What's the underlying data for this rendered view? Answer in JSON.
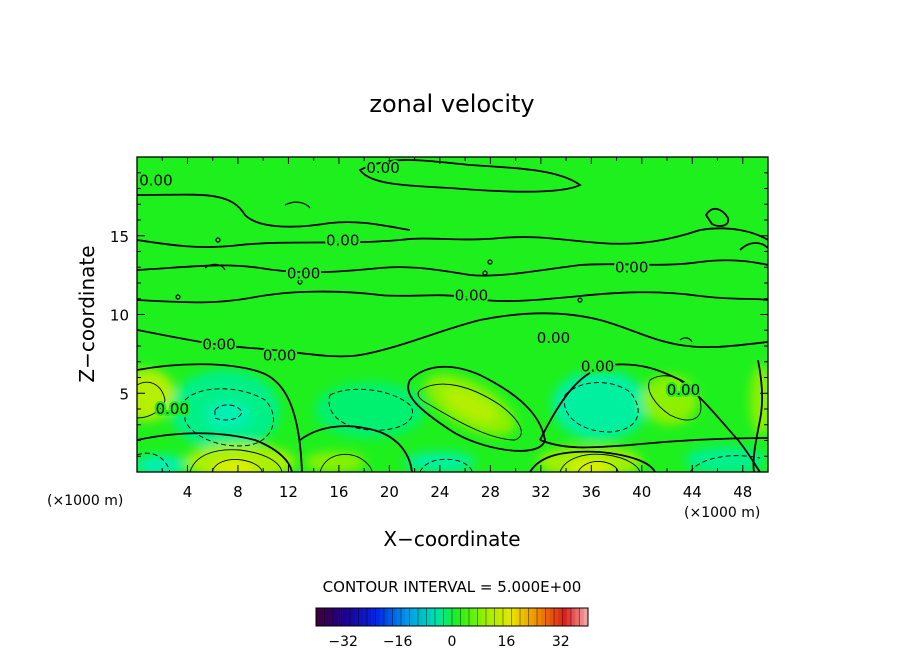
{
  "chart_data": {
    "type": "heatmap",
    "title": "zonal velocity",
    "xlabel": "X−coordinate",
    "ylabel": "Z−coordinate",
    "x_unit_label": "(×1000 m)",
    "z_unit_label": "(×1000 m)",
    "xlim": [
      0,
      50
    ],
    "ylim": [
      0,
      20
    ],
    "x_ticks": [
      4,
      8,
      12,
      16,
      20,
      24,
      28,
      32,
      36,
      40,
      44,
      48
    ],
    "x_tick_labels": [
      "4",
      "8",
      "12",
      "16",
      "20",
      "24",
      "28",
      "32",
      "36",
      "40",
      "44",
      "48"
    ],
    "y_ticks": [
      5,
      10,
      15
    ],
    "y_tick_labels": [
      "5",
      "10",
      "15"
    ],
    "contour_interval_text": "CONTOUR INTERVAL = 5.000E+00",
    "contour_interval": 5,
    "contour_labels": [
      {
        "text": "0.00",
        "x": 1.5,
        "z": 18.5
      },
      {
        "text": "0.00",
        "x": 19.5,
        "z": 19.3
      },
      {
        "text": "0.00",
        "x": 16.3,
        "z": 14.7
      },
      {
        "text": "0.00",
        "x": 13.2,
        "z": 12.6
      },
      {
        "text": "0.00",
        "x": 26.5,
        "z": 11.2
      },
      {
        "text": "0.00",
        "x": 39.2,
        "z": 13.0
      },
      {
        "text": "0.00",
        "x": 33.0,
        "z": 8.5
      },
      {
        "text": "0.00",
        "x": 6.5,
        "z": 8.1
      },
      {
        "text": "0.00",
        "x": 11.3,
        "z": 7.4
      },
      {
        "text": "0.00",
        "x": 2.8,
        "z": 4.0
      },
      {
        "text": "0.00",
        "x": 36.5,
        "z": 6.7
      },
      {
        "text": "0.00",
        "x": 43.3,
        "z": 5.2
      }
    ],
    "colorbar": {
      "range": [
        -40,
        40
      ],
      "tick_values": [
        -32,
        -16,
        0,
        16,
        32
      ],
      "tick_labels": [
        "−32",
        "−16",
        "0",
        "16",
        "32"
      ]
    },
    "colors": {
      "zero_field": "#1ef01e",
      "positive_core": "#c8f000",
      "negative_core": "#00f0b4"
    }
  }
}
